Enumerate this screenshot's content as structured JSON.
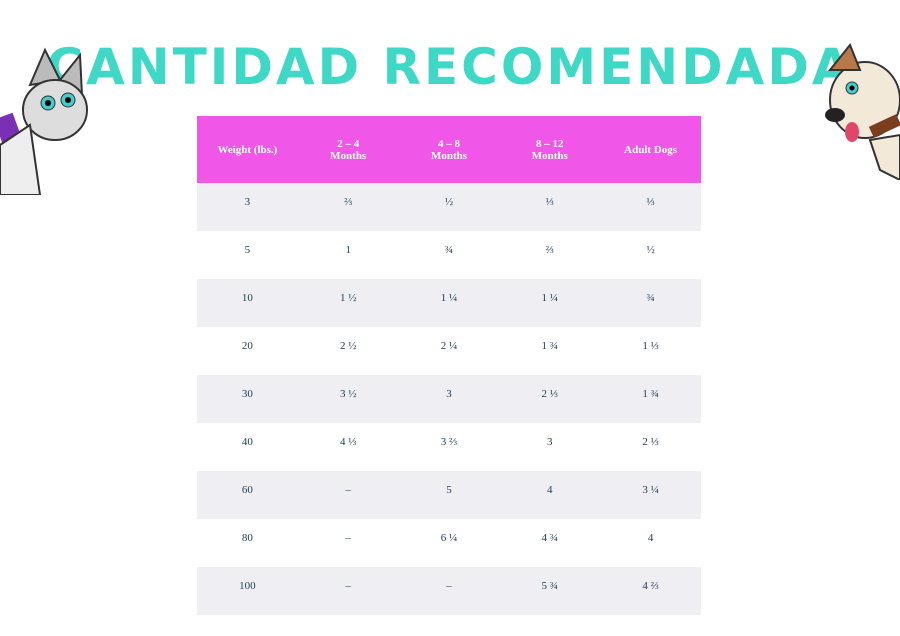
{
  "header": {
    "title": "CANTIDAD RECOMENDADA"
  },
  "table": {
    "columns": [
      "Weight (lbs.)",
      "2 – 4\nMonths",
      "4 – 8\nMonths",
      "8 – 12\nMonths",
      "Adult Dogs"
    ],
    "rows": [
      [
        "3",
        "⅔",
        "½",
        "⅓",
        "⅓"
      ],
      [
        "5",
        "1",
        "¾",
        "⅔",
        "½"
      ],
      [
        "10",
        "1 ½",
        "1 ¼",
        "1 ¼",
        "¾"
      ],
      [
        "20",
        "2 ½",
        "2 ¼",
        "1 ¾",
        "1 ⅓"
      ],
      [
        "30",
        "3 ½",
        "3",
        "2 ⅓",
        "1 ¾"
      ],
      [
        "40",
        "4 ⅓",
        "3 ⅔",
        "3",
        "2 ⅓"
      ],
      [
        "60",
        "–",
        "5",
        "4",
        "3 ¼"
      ],
      [
        "80",
        "–",
        "6 ¼",
        "4 ¾",
        "4"
      ],
      [
        "100",
        "–",
        "–",
        "5 ¾",
        "4 ⅔"
      ]
    ]
  }
}
